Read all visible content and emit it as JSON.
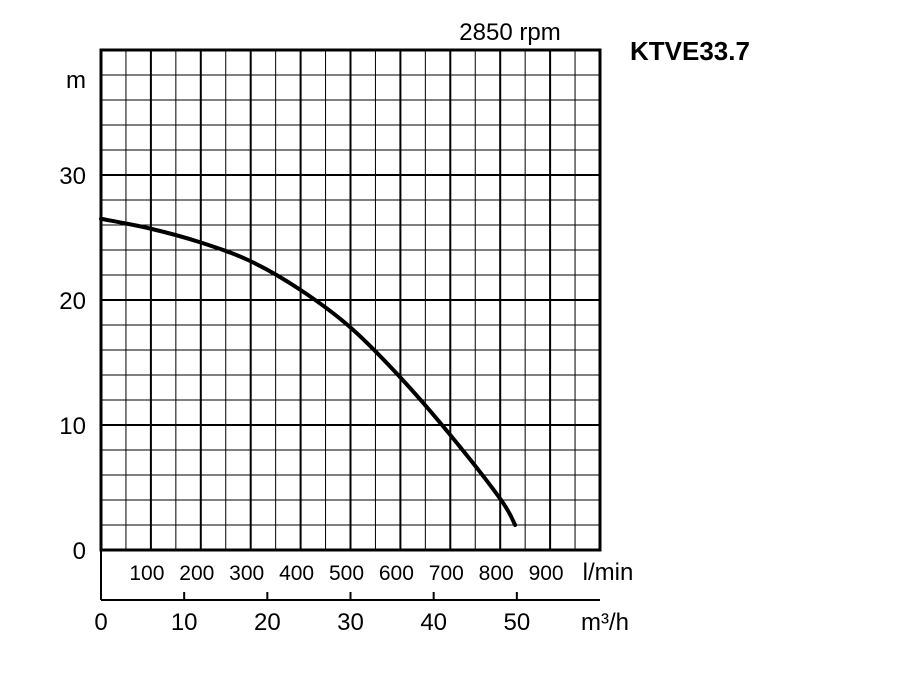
{
  "chart_data": {
    "type": "line",
    "title": "KTVE33.7",
    "subtitle": "2850 rpm",
    "ylabel": "m",
    "xlabel_lmin": "l/min",
    "xlabel_m3h": "m³/h",
    "ylim": [
      0,
      40
    ],
    "xlim_lmin": [
      0,
      1000
    ],
    "yticks": [
      "0",
      "10",
      "20",
      "30"
    ],
    "lmin_ticks": [
      "100",
      "200",
      "300",
      "400",
      "500",
      "600",
      "700",
      "800",
      "900"
    ],
    "m3h_ticks": [
      "0",
      "10",
      "20",
      "30",
      "40",
      "50"
    ],
    "grid": true,
    "series": [
      {
        "x_lmin": [
          0,
          100,
          200,
          300,
          400,
          500,
          600,
          700,
          800,
          830
        ],
        "y_m": [
          26.5,
          25.7,
          24.6,
          23.1,
          20.8,
          17.8,
          13.8,
          9.2,
          4.1,
          2.0
        ]
      }
    ]
  }
}
